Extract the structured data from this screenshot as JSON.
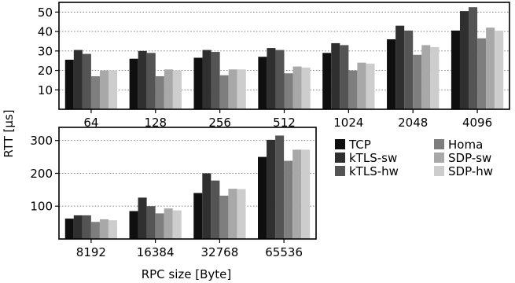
{
  "chart_data": [
    {
      "type": "bar",
      "categories": [
        "64",
        "128",
        "256",
        "512",
        "1024",
        "2048",
        "4096"
      ],
      "yticks": [
        10,
        20,
        30,
        40,
        50
      ],
      "ylim": [
        0,
        55
      ],
      "grid": true,
      "series": [
        {
          "name": "TCP",
          "values": [
            25.5,
            26,
            26.5,
            27,
            29,
            36,
            40.5
          ]
        },
        {
          "name": "kTLS-sw",
          "values": [
            30.5,
            30,
            30.5,
            31.5,
            34,
            43,
            50.5
          ]
        },
        {
          "name": "kTLS-hw",
          "values": [
            28.5,
            29,
            29.5,
            30.5,
            33,
            40.5,
            52.5
          ]
        },
        {
          "name": "Homa",
          "values": [
            17,
            17,
            17.5,
            18.5,
            20,
            28,
            36.5
          ]
        },
        {
          "name": "SDP-sw",
          "values": [
            20,
            20.5,
            20.5,
            22,
            24,
            33,
            42
          ]
        },
        {
          "name": "SDP-hw",
          "values": [
            20,
            20,
            20.5,
            21.5,
            23.5,
            32,
            40.5
          ]
        }
      ]
    },
    {
      "type": "bar",
      "categories": [
        "8192",
        "16384",
        "32768",
        "65536"
      ],
      "yticks": [
        100,
        200,
        300
      ],
      "ylim": [
        0,
        340
      ],
      "grid": true,
      "series": [
        {
          "name": "TCP",
          "values": [
            62,
            85,
            140,
            250
          ]
        },
        {
          "name": "kTLS-sw",
          "values": [
            72,
            126,
            200,
            302
          ]
        },
        {
          "name": "kTLS-hw",
          "values": [
            72,
            100,
            178,
            315
          ]
        },
        {
          "name": "Homa",
          "values": [
            52,
            78,
            132,
            238
          ]
        },
        {
          "name": "SDP-sw",
          "values": [
            60,
            93,
            153,
            272
          ]
        },
        {
          "name": "SDP-hw",
          "values": [
            57,
            87,
            152,
            272
          ]
        }
      ]
    }
  ],
  "ylabel": "RTT [µs]",
  "xlabel": "RPC size [Byte]",
  "legend": {
    "placement": "right of lower panel",
    "entries": [
      "TCP",
      "kTLS-sw",
      "kTLS-hw",
      "Homa",
      "SDP-sw",
      "SDP-hw"
    ]
  },
  "colors": {
    "TCP": "#0f0f0f",
    "kTLS-sw": "#2f2f2f",
    "kTLS-hw": "#545454",
    "Homa": "#7e7e7e",
    "SDP-sw": "#a8a8a8",
    "SDP-hw": "#cdcdcd"
  }
}
